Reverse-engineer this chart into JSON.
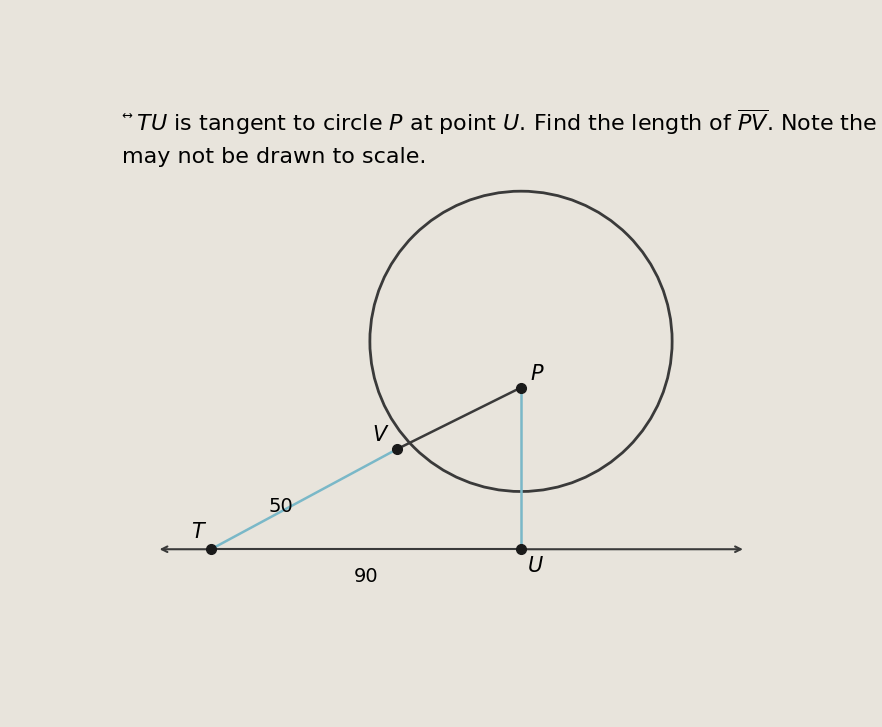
{
  "background_color": "#e8e4dc",
  "TV_label": "50",
  "TU_label": "90",
  "label_T": "T",
  "label_U": "U",
  "label_V": "V",
  "label_P": "P",
  "line_color": "#3a3a3a",
  "blue_line_color": "#7ab8c8",
  "dot_color": "#1a1a1a",
  "dot_size": 7,
  "font_size_labels": 15,
  "font_size_numbers": 14,
  "title_fontsize": 16
}
